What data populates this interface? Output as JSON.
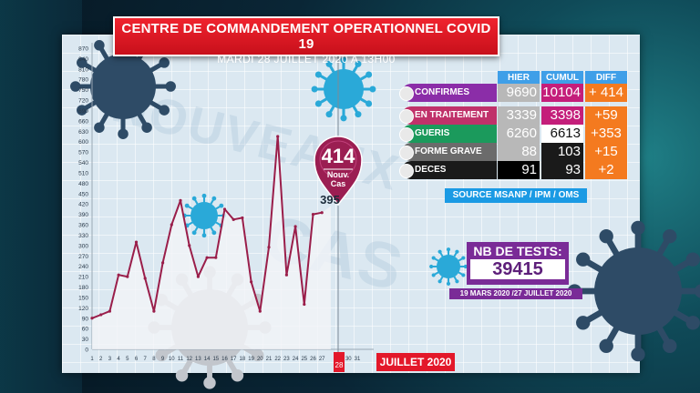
{
  "header": {
    "title": "CENTRE DE COMMANDEMENT OPERATIONNEL COVID 19",
    "subtitle": "MARDI 28 JUILLET 2020 A 13H00"
  },
  "watermark": {
    "line1": "NOUVEAUX",
    "line2": "CAS"
  },
  "highlight": {
    "value": "414",
    "label_line1": "Nouv.",
    "label_line2": "Cas",
    "previous": "395"
  },
  "table": {
    "columns": [
      "HIER",
      "CUMUL",
      "DIFF"
    ],
    "rows": [
      {
        "label": "CONFIRMES",
        "hier": "9690",
        "cumul": "10104",
        "diff": "+ 414",
        "color": "#8b2da8"
      },
      {
        "label": "EN TRAITEMENT",
        "hier": "3339",
        "cumul": "3398",
        "diff": "+59",
        "color": "#c0316a"
      },
      {
        "label": "GUERIS",
        "hier": "6260",
        "cumul": "6613",
        "diff": "+353",
        "color": "#1b9a5c"
      },
      {
        "label": "FORME GRAVE",
        "hier": "88",
        "cumul": "103",
        "diff": "+15",
        "color": "#6b6b6b"
      },
      {
        "label": "DECES",
        "hier": "91",
        "cumul": "93",
        "diff": "+2",
        "color": "#1a1a1a"
      }
    ],
    "cumul_color": "#c41e7a"
  },
  "source": "SOURCE MSANP / IPM / OMS",
  "tests": {
    "label": "NB DE TESTS:",
    "value": "39415",
    "period": "19 MARS 2020 /27 JUILLET 2020"
  },
  "month_label": "JUILLET 2020",
  "today_day": "28",
  "colors": {
    "line": "#9a1e4a",
    "fill": "#f2f4f7",
    "virus_dark": "#2e4b66",
    "virus_blue": "#2aa9d8",
    "virus_grey": "#c2c6cc"
  },
  "chart_data": {
    "type": "line",
    "title": "",
    "xlabel": "",
    "ylabel": "",
    "x": [
      1,
      2,
      3,
      4,
      5,
      6,
      7,
      8,
      9,
      10,
      11,
      12,
      13,
      14,
      15,
      16,
      17,
      18,
      19,
      20,
      21,
      22,
      23,
      24,
      25,
      26,
      27,
      28
    ],
    "series": [
      {
        "name": "",
        "values": [
          90,
          100,
          110,
          215,
          210,
          310,
          205,
          110,
          250,
          360,
          430,
          300,
          210,
          265,
          265,
          405,
          375,
          380,
          195,
          110,
          295,
          615,
          215,
          355,
          130,
          390,
          395,
          414
        ]
      }
    ],
    "ylim": [
      0,
      870
    ],
    "yticks": [
      0,
      30,
      60,
      90,
      120,
      150,
      180,
      210,
      240,
      270,
      300,
      330,
      360,
      390,
      420,
      450,
      480,
      510,
      540,
      570,
      600,
      630,
      660,
      690,
      720,
      750,
      780,
      810,
      840,
      870
    ],
    "xticks": [
      "1",
      "2",
      "3",
      "4",
      "5",
      "6",
      "7",
      "8",
      "9",
      "10",
      "11",
      "12",
      "13",
      "14",
      "15",
      "16",
      "17",
      "18",
      "19",
      "20",
      "21",
      "22",
      "23",
      "24",
      "25",
      "26",
      "27",
      "28",
      "29",
      "30",
      "31"
    ],
    "grid": true
  }
}
